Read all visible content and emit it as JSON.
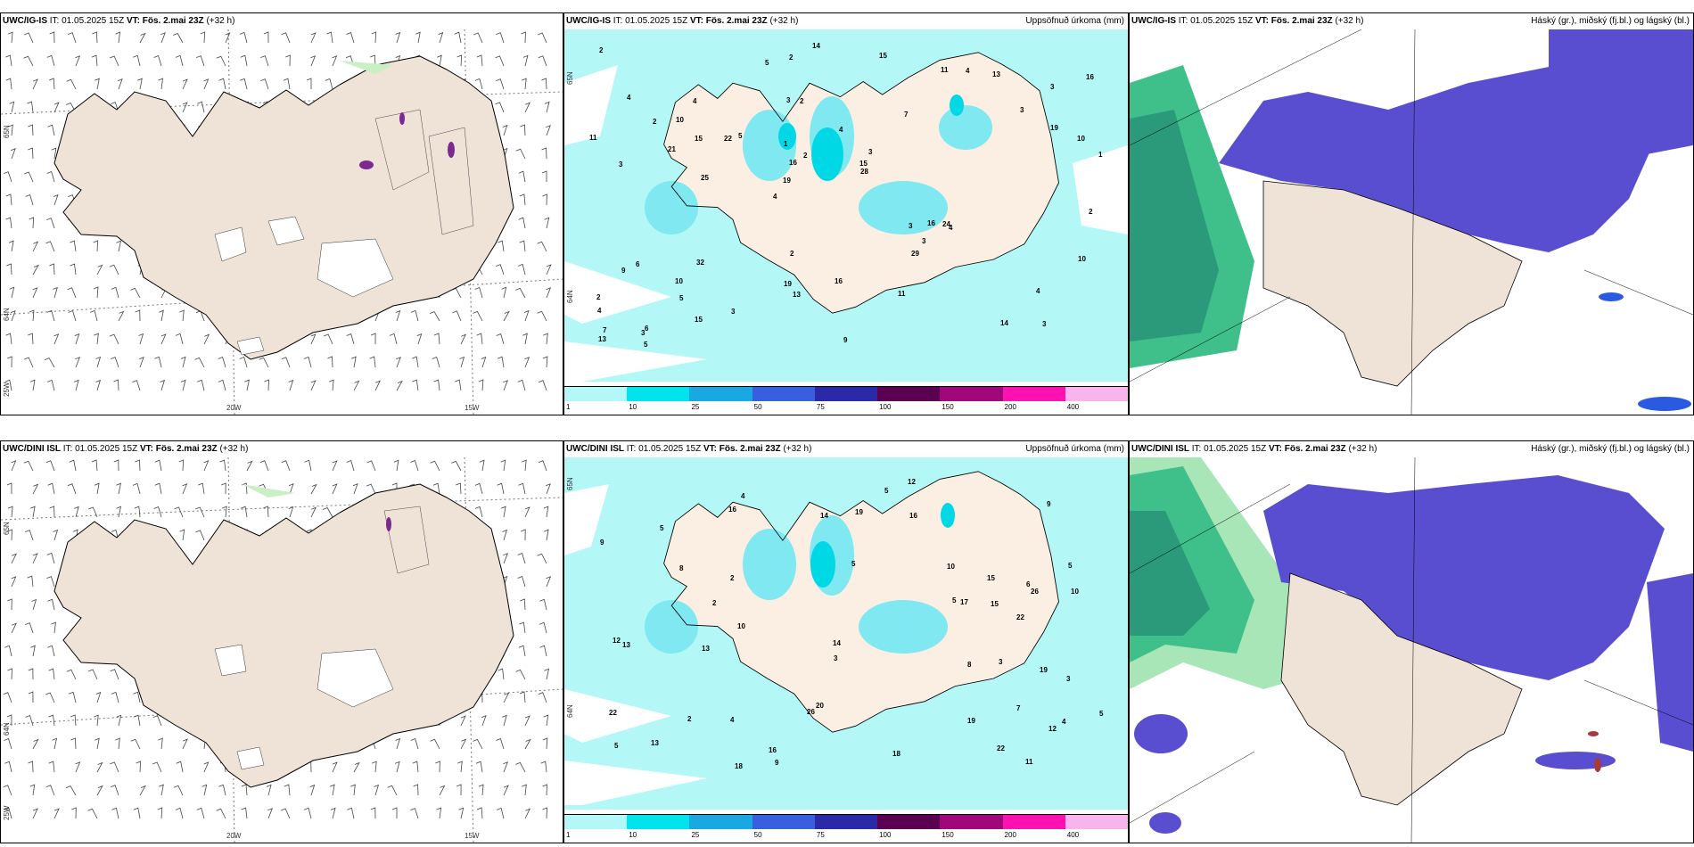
{
  "rows": [
    {
      "model": "UWC/IG-IS",
      "it_label": "IT:",
      "it_value": "01.05.2025 15Z",
      "vt_label": "VT:",
      "vt_value": "Fös. 2.mai 23Z",
      "lead": "(+32 h)"
    },
    {
      "model": "UWC/DINI ISL",
      "it_label": "IT:",
      "it_value": "01.05.2025 15Z",
      "vt_label": "VT:",
      "vt_value": "Fös. 2.mai 23Z",
      "lead": "(+32 h)"
    }
  ],
  "precip_title": "Uppsöfnuð úrkoma (mm)",
  "cloud_title": "Háský (gr.), miðský (fj.bl.) og lágský (bl.)",
  "lat_labels": [
    "65N",
    "64N"
  ],
  "lon_labels": [
    "25W",
    "20W",
    "15W"
  ],
  "colorbar": {
    "ticks": [
      "1",
      "10",
      "25",
      "50",
      "75",
      "100",
      "150",
      "200",
      "400"
    ],
    "colors": [
      "#b3f7f7",
      "#00e5ec",
      "#1aa8e0",
      "#3a5ee0",
      "#2a2aa8",
      "#5a0050",
      "#a0087a",
      "#ff10b0",
      "#f8b4ec"
    ]
  },
  "precip_numbers_top": [
    "3",
    "3",
    "3",
    "4",
    "7",
    "6",
    "3",
    "4",
    "6",
    "5",
    "4",
    "5",
    "2",
    "3",
    "4",
    "4",
    "2",
    "1",
    "3",
    "19",
    "19",
    "19",
    "16",
    "4",
    "11",
    "32",
    "14",
    "4",
    "24",
    "9",
    "22",
    "21",
    "29",
    "15",
    "10",
    "15",
    "7",
    "13",
    "28",
    "9",
    "3",
    "16",
    "3",
    "11",
    "10",
    "5",
    "13",
    "16",
    "13",
    "14",
    "25",
    "11",
    "10",
    "4",
    "3",
    "15",
    "5",
    "2",
    "10",
    "2",
    "3",
    "16",
    "15",
    "2",
    "2",
    "2",
    "2",
    "1"
  ],
  "precip_numbers_bottom": [
    "7",
    "5",
    "4",
    "5",
    "5",
    "4",
    "6",
    "4",
    "9",
    "8",
    "10",
    "9",
    "22",
    "9",
    "22",
    "5",
    "12",
    "16",
    "20",
    "26",
    "12",
    "13",
    "18",
    "5",
    "16",
    "26",
    "5",
    "16",
    "10",
    "5",
    "13",
    "19",
    "18",
    "14",
    "19",
    "22",
    "17",
    "14",
    "11",
    "10",
    "3",
    "15",
    "19",
    "2",
    "3",
    "8",
    "13",
    "12",
    "2",
    "15",
    "2",
    "3"
  ]
}
